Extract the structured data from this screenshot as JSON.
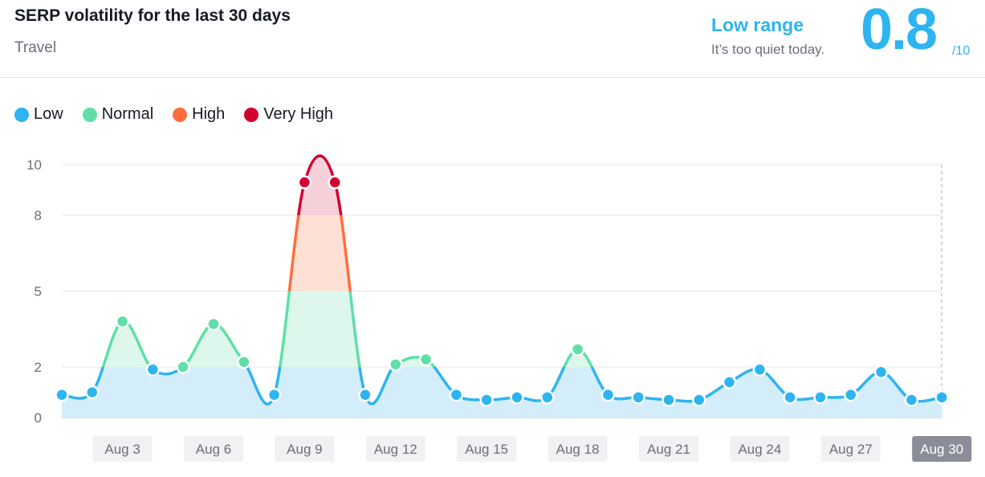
{
  "header": {
    "title": "SERP volatility for the last 30 days",
    "category": "Travel",
    "range_label": "Low range",
    "range_note": "It’s too quiet today.",
    "score": "0.8",
    "score_max": "/10"
  },
  "legend": [
    {
      "label": "Low",
      "color": "#2eb4f0"
    },
    {
      "label": "Normal",
      "color": "#5fdfa7"
    },
    {
      "label": "High",
      "color": "#ff6e3c"
    },
    {
      "label": "Very High",
      "color": "#d1002f"
    }
  ],
  "colors": {
    "low": "#2eb4f0",
    "low_fill": "#d3edfb",
    "normal": "#5fdfa7",
    "normal_fill": "#def7ec",
    "high": "#ff6e3c",
    "high_fill": "#ffe0d5",
    "very_high": "#d1002f",
    "very_high_fill": "#f6d0d8",
    "grid": "#e4e6ea",
    "selected_badge": "#8b8d98"
  },
  "chart_data": {
    "type": "area",
    "x": [
      "Aug 1",
      "Aug 2",
      "Aug 3",
      "Aug 4",
      "Aug 5",
      "Aug 6",
      "Aug 7",
      "Aug 8",
      "Aug 9",
      "Aug 10",
      "Aug 11",
      "Aug 12",
      "Aug 13",
      "Aug 14",
      "Aug 15",
      "Aug 16",
      "Aug 17",
      "Aug 18",
      "Aug 19",
      "Aug 20",
      "Aug 21",
      "Aug 22",
      "Aug 23",
      "Aug 24",
      "Aug 25",
      "Aug 26",
      "Aug 27",
      "Aug 28",
      "Aug 29",
      "Aug 30"
    ],
    "values": [
      0.9,
      1.0,
      3.8,
      1.9,
      2.0,
      3.7,
      2.2,
      0.9,
      9.3,
      9.3,
      0.9,
      2.1,
      2.3,
      0.9,
      0.7,
      0.8,
      0.8,
      2.7,
      0.9,
      0.8,
      0.7,
      0.7,
      1.4,
      1.9,
      0.8,
      0.8,
      0.9,
      1.8,
      0.7,
      0.8
    ],
    "y_ticks": [
      0,
      2,
      5,
      8,
      10
    ],
    "ylim": [
      0,
      10
    ],
    "x_tick_labels": [
      "Aug 3",
      "Aug 6",
      "Aug 9",
      "Aug 12",
      "Aug 15",
      "Aug 18",
      "Aug 21",
      "Aug 24",
      "Aug 27",
      "Aug 30"
    ],
    "selected": "Aug 30",
    "bands": [
      {
        "name": "Low",
        "from": 0,
        "to": 2
      },
      {
        "name": "Normal",
        "from": 2,
        "to": 5
      },
      {
        "name": "High",
        "from": 5,
        "to": 8
      },
      {
        "name": "Very High",
        "from": 8,
        "to": 10
      }
    ]
  }
}
